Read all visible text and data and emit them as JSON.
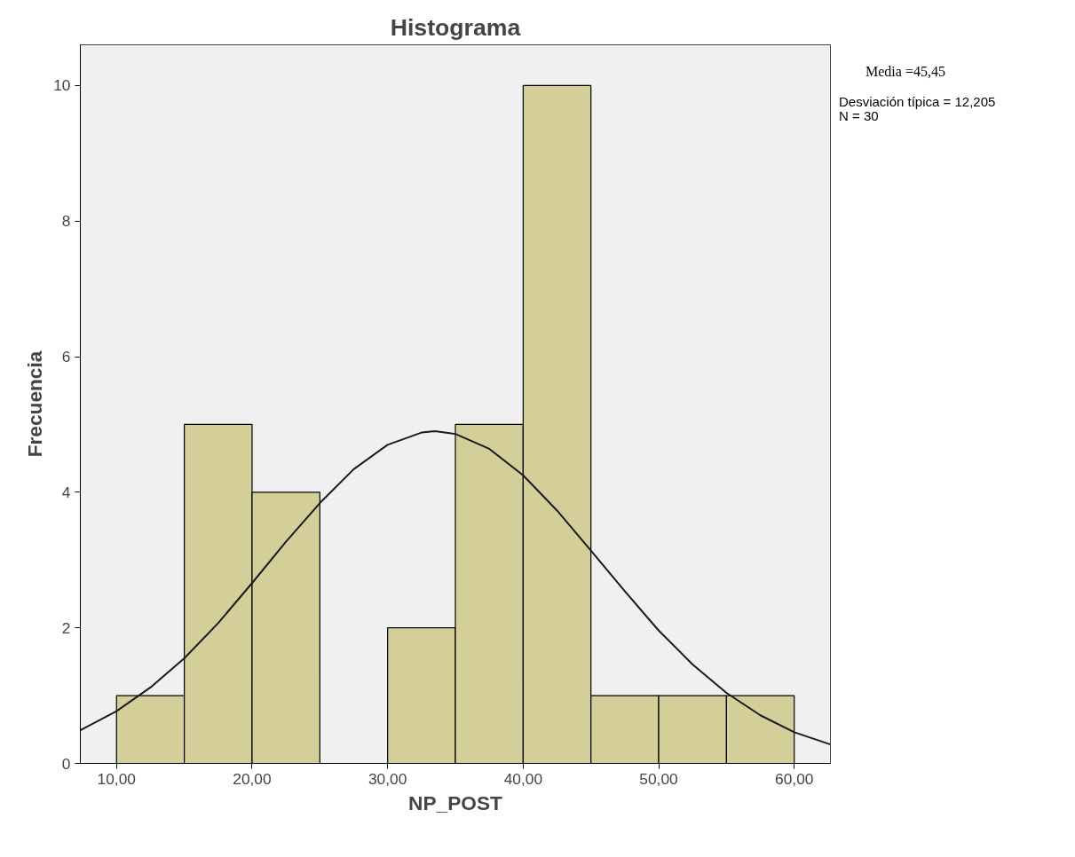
{
  "chart_data": {
    "type": "histogram",
    "title": "Histograma",
    "xlabel": "NP_POST",
    "ylabel": "Frecuencia",
    "bins": [
      10,
      15,
      20,
      25,
      30,
      35,
      40,
      45,
      50,
      55,
      60
    ],
    "values": [
      1,
      5,
      4,
      0,
      2,
      5,
      10,
      1,
      1,
      1
    ],
    "color": "#d4cf98",
    "series": [
      {
        "type": "line",
        "color": "#1a1a1a",
        "x": [
          7.33,
          10,
          12.5,
          15,
          17.5,
          20,
          22.5,
          25,
          27.5,
          30,
          32.5,
          33.5,
          35,
          37.5,
          40,
          42.5,
          45,
          47.5,
          50,
          52.5,
          55,
          57.5,
          60,
          62.67
        ],
        "values": [
          0.49,
          0.77,
          1.12,
          1.55,
          2.07,
          2.66,
          3.27,
          3.84,
          4.34,
          4.7,
          4.88,
          4.9,
          4.86,
          4.64,
          4.25,
          3.73,
          3.14,
          2.54,
          1.96,
          1.46,
          1.04,
          0.71,
          0.46,
          0.28
        ]
      }
    ],
    "xlim": [
      7.33,
      62.67
    ],
    "ylim": [
      0,
      10.6
    ],
    "xticks": [
      {
        "value": 10,
        "label": "10,00"
      },
      {
        "value": 20,
        "label": "20,00"
      },
      {
        "value": 30,
        "label": "30,00"
      },
      {
        "value": 40,
        "label": "40,00"
      },
      {
        "value": 50,
        "label": "50,00"
      },
      {
        "value": 60,
        "label": "60,00"
      }
    ],
    "yticks": [
      0,
      2,
      4,
      6,
      8,
      10
    ],
    "grid": false,
    "annotations": [
      "Media =45,45",
      "Desviación típica = 12,205",
      "N = 30"
    ]
  }
}
